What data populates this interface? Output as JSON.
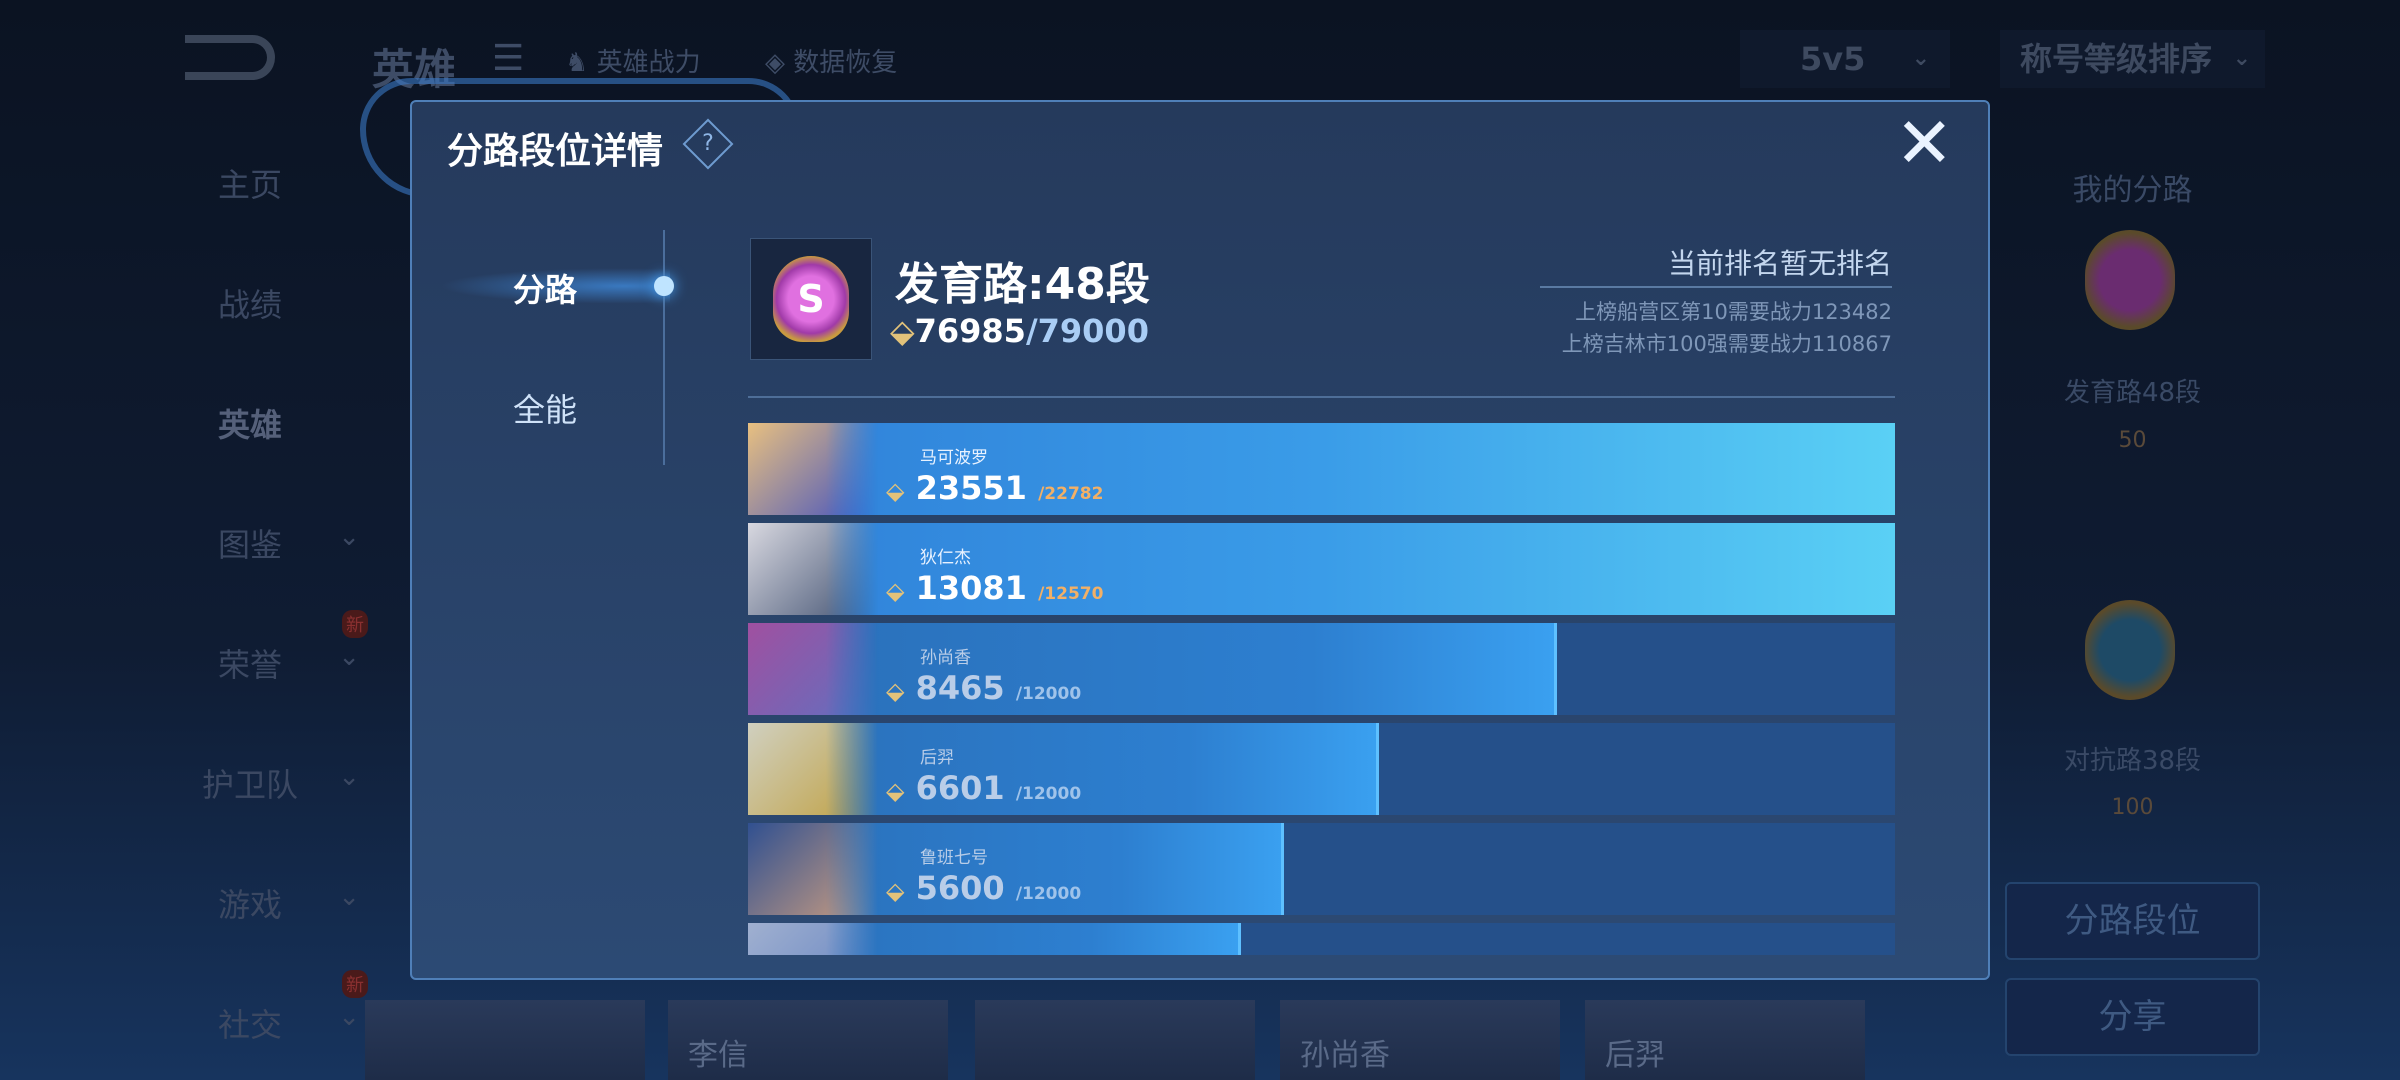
{
  "topbar": {
    "title": "英雄",
    "hero_power": "英雄战力",
    "data_restore": "数据恢复",
    "mode_select": "5v5",
    "sort_select": "称号等级排序"
  },
  "sidebar": {
    "items": [
      {
        "label": "主页"
      },
      {
        "label": "战绩"
      },
      {
        "label": "英雄"
      },
      {
        "label": "图鉴"
      },
      {
        "label": "荣誉",
        "badge": "新"
      },
      {
        "label": "护卫队"
      },
      {
        "label": "游戏"
      },
      {
        "label": "社交",
        "badge": "新"
      }
    ]
  },
  "background_heroes": [
    "李信",
    "孙尚香",
    "后羿"
  ],
  "right_panel": {
    "title": "我的分路",
    "lane1": "发育路48段",
    "lane1_rank": "50",
    "lane2": "对抗路38段",
    "lane2_rank": "100",
    "lane_rank_button": "分路段位",
    "share_button": "分享"
  },
  "modal": {
    "title": "分路段位详情",
    "help": "?",
    "close": "✕",
    "tabs": [
      {
        "label": "分路",
        "active": true
      },
      {
        "label": "全能",
        "active": false
      }
    ],
    "rank": {
      "title": "发育路:48段",
      "score": "76985",
      "max": "/79000",
      "badge_letter": "S"
    },
    "ranking": {
      "status": "当前排名暂无排名",
      "line1": "上榜船营区第10需要战力123482",
      "line2": "上榜吉林市100强需要战力110867"
    },
    "heroes": [
      {
        "name": "马可波罗",
        "score": "23551",
        "max": "/22782",
        "progress": 1.0,
        "over": true
      },
      {
        "name": "狄仁杰",
        "score": "13081",
        "max": "/12570",
        "progress": 1.0,
        "over": true
      },
      {
        "name": "孙尚香",
        "score": "8465",
        "max": "/12000",
        "progress": 0.705,
        "over": false
      },
      {
        "name": "后羿",
        "score": "6601",
        "max": "/12000",
        "progress": 0.55,
        "over": false
      },
      {
        "name": "鲁班七号",
        "score": "5600",
        "max": "/12000",
        "progress": 0.467,
        "over": false
      },
      {
        "name": "",
        "score": "",
        "max": "",
        "progress": 0.43,
        "over": false
      }
    ]
  },
  "colors": {
    "accent": "#3a9ce8",
    "over_max": "#f2b066",
    "power_icon": "#e2c27a"
  }
}
